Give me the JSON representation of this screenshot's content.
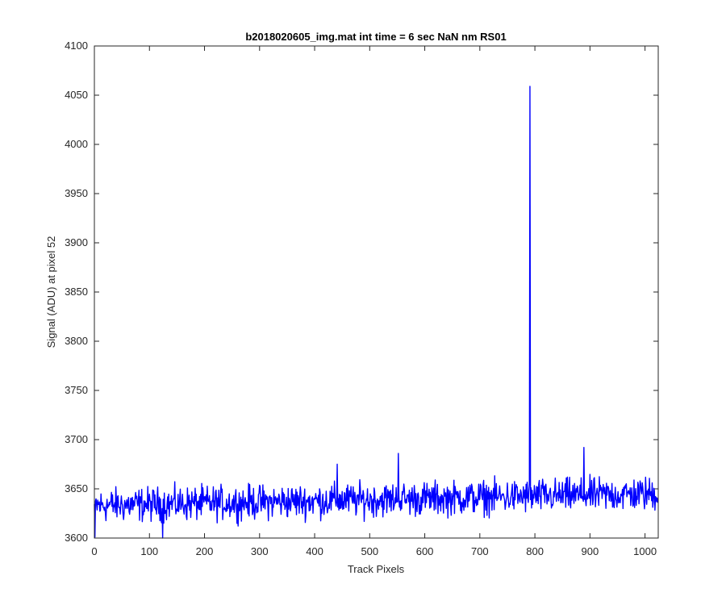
{
  "chart_data": {
    "type": "line",
    "title": "b2018020605_img.mat int time = 6 sec  NaN nm RS01",
    "xlabel": "Track Pixels",
    "ylabel": "Signal (ADU) at pixel 52",
    "xlim": [
      0,
      1024
    ],
    "ylim": [
      3600,
      4100
    ],
    "xticks": [
      0,
      100,
      200,
      300,
      400,
      500,
      600,
      700,
      800,
      900,
      1000
    ],
    "yticks": [
      3600,
      3650,
      3700,
      3750,
      3800,
      3850,
      3900,
      3950,
      4000,
      4050,
      4100
    ],
    "grid": false,
    "line_color": "#0000ff",
    "series": [
      {
        "n_points": 1024,
        "baseline_start": 3633,
        "baseline_end": 3645,
        "noise_amplitude": 12,
        "spikes": [
          {
            "x": 791,
            "y": 4059
          },
          {
            "x": 889,
            "y": 3692
          },
          {
            "x": 552,
            "y": 3686
          },
          {
            "x": 441,
            "y": 3675
          },
          {
            "x": 124,
            "y": 3600
          },
          {
            "x": 1,
            "y": 3601
          }
        ]
      }
    ]
  }
}
